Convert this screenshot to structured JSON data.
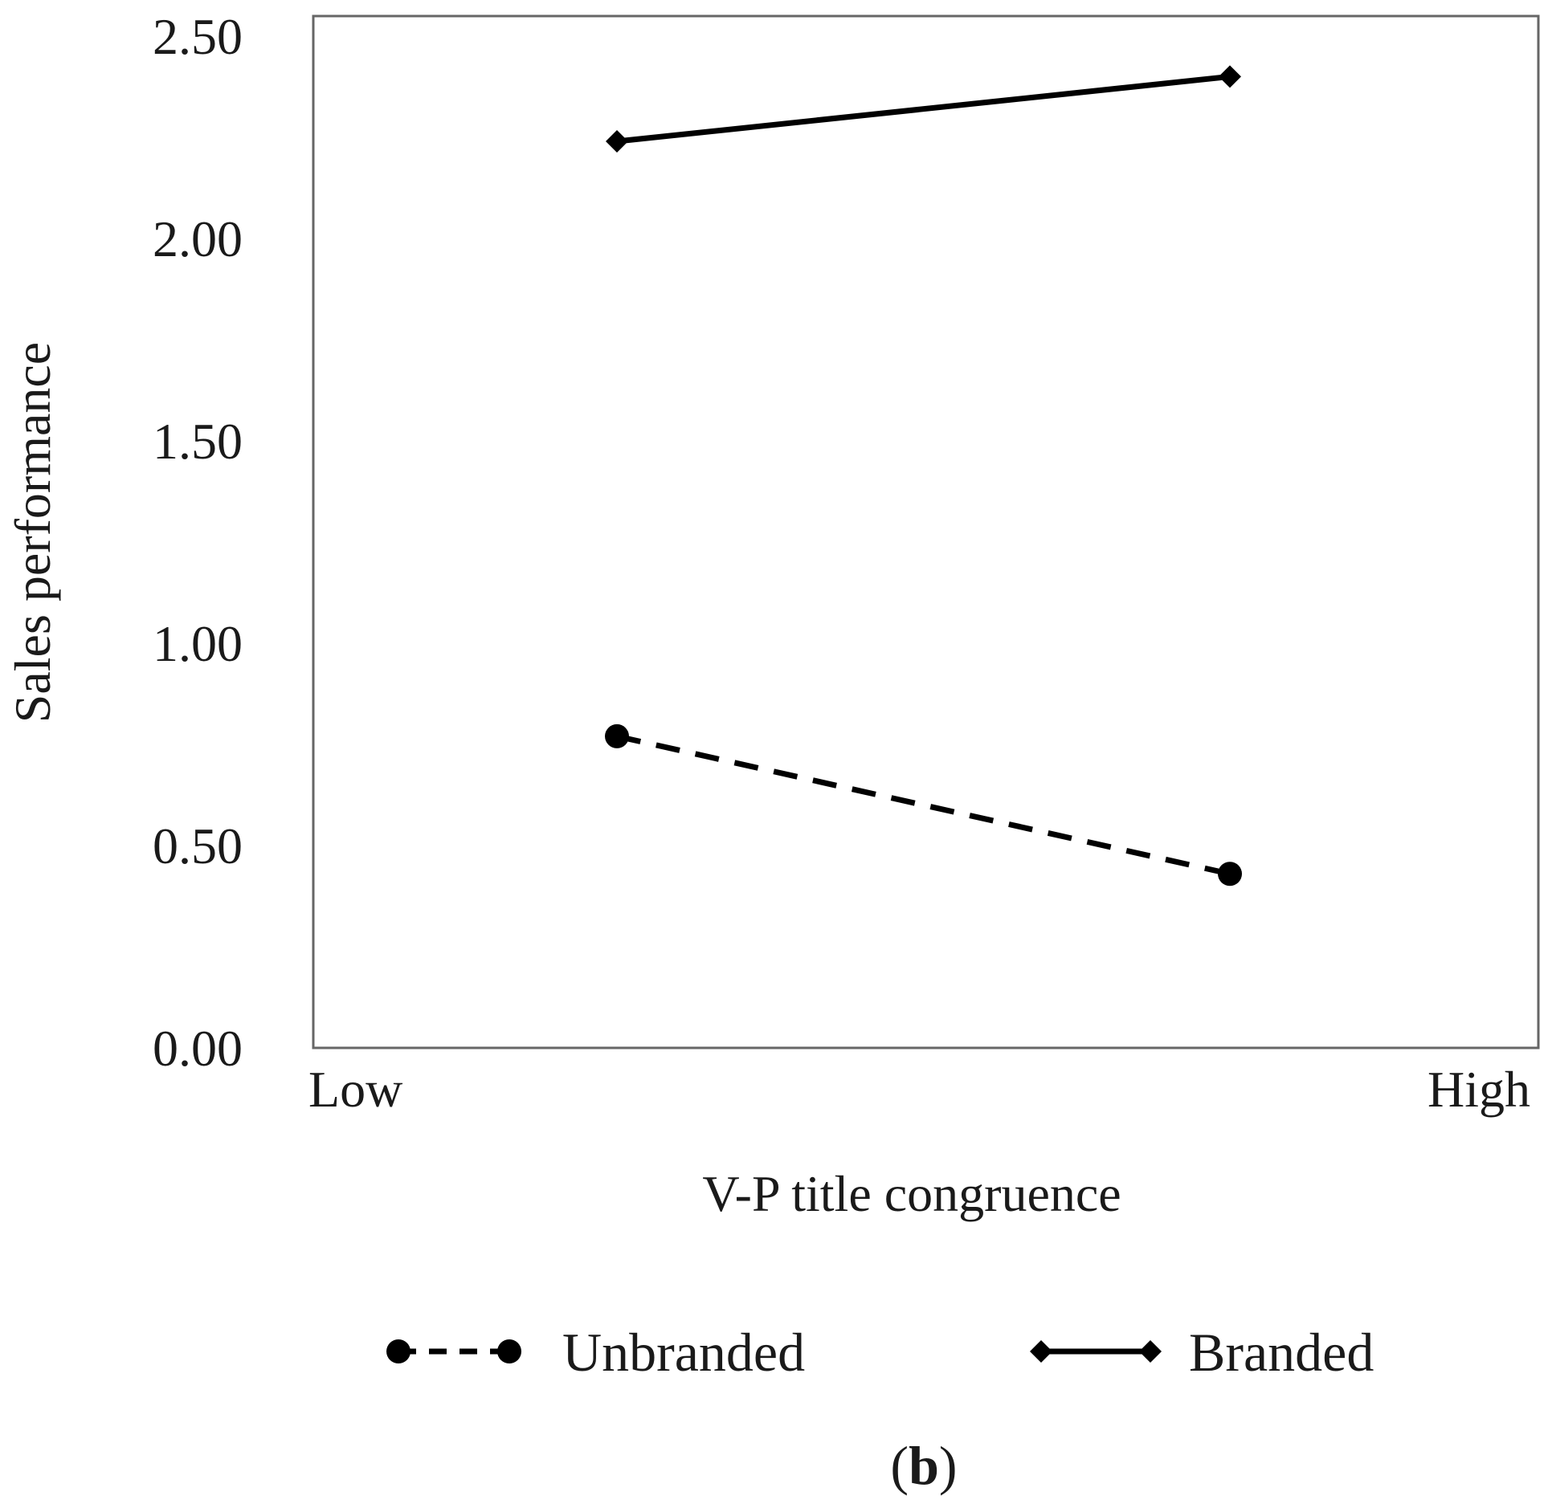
{
  "chart_data": {
    "type": "line",
    "categories": [
      "Low",
      "High"
    ],
    "x_positions": [
      "Low",
      "High"
    ],
    "xlabel": "V-P title congruence",
    "ylabel": "Sales performance",
    "ylim": [
      0,
      2.5
    ],
    "yticks": [
      "0.00",
      "0.50",
      "1.00",
      "1.50",
      "2.00",
      "2.50"
    ],
    "grid": false,
    "legend_position": "bottom",
    "series": [
      {
        "name": "Unbranded",
        "style": "dashed",
        "marker": "circle",
        "color": "#000000",
        "values": [
          0.77,
          0.43
        ]
      },
      {
        "name": "Branded",
        "style": "solid",
        "marker": "diamond",
        "color": "#000000",
        "values": [
          2.24,
          2.4
        ]
      }
    ]
  },
  "figure": {
    "panel_open": "(",
    "panel_letter": "b",
    "panel_close": ")"
  }
}
